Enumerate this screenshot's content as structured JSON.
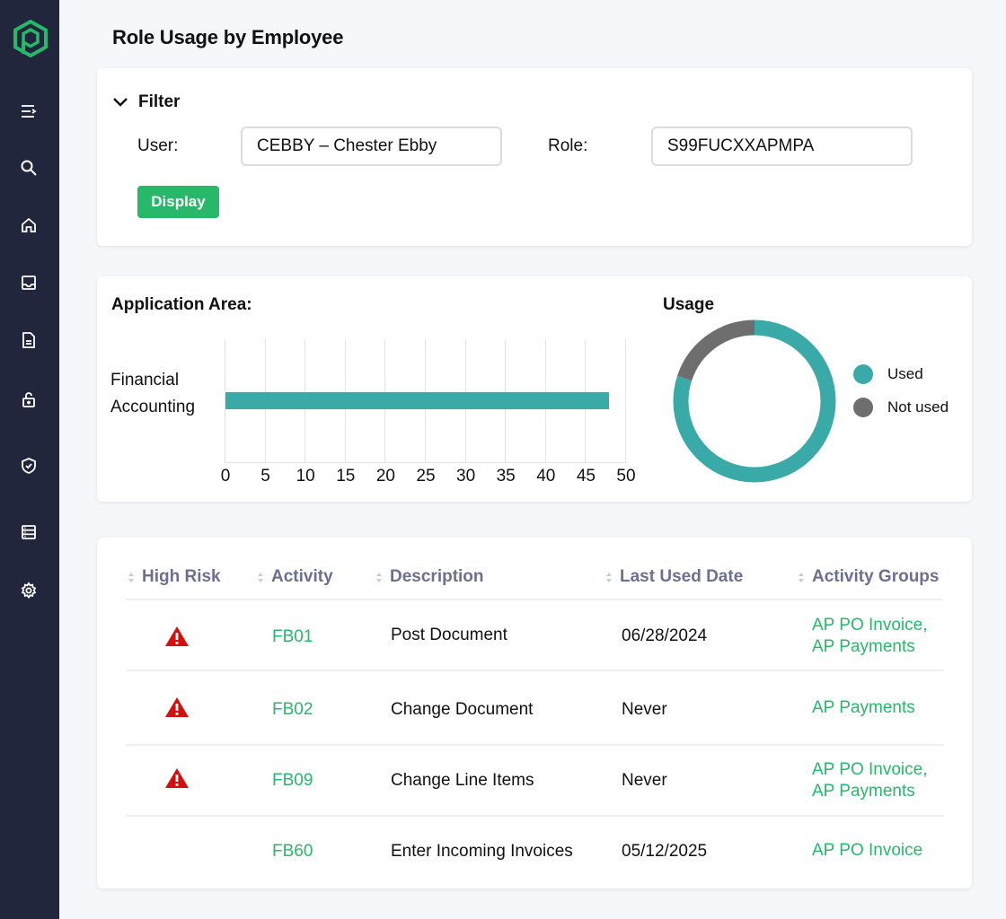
{
  "sidebar": {
    "logo": "brand-hexagon-logo",
    "brand_color": "#27b86a",
    "background": "#22263d",
    "items": [
      {
        "name": "menu",
        "icon": "menu-icon"
      },
      {
        "name": "search",
        "icon": "search-icon"
      },
      {
        "name": "home",
        "icon": "home-icon"
      },
      {
        "name": "inbox",
        "icon": "inbox-icon"
      },
      {
        "name": "document",
        "icon": "document-icon"
      },
      {
        "name": "unlock",
        "icon": "unlock-icon"
      },
      {
        "name": "shield",
        "icon": "shield-check-icon"
      },
      {
        "name": "list",
        "icon": "list-icon"
      },
      {
        "name": "settings",
        "icon": "gear-icon"
      }
    ]
  },
  "page": {
    "title": "Role Usage by Employee"
  },
  "filter": {
    "title": "Filter",
    "user_label": "User:",
    "user_value": "CEBBY – Chester Ebby",
    "role_label": "Role:",
    "role_value": "S99FUCXXAPMPA",
    "display_label": "Display"
  },
  "charts": {
    "application_area_title": "Application Area:",
    "usage_title": "Usage"
  },
  "chart_data": [
    {
      "type": "bar",
      "orientation": "horizontal",
      "title": "Application Area:",
      "categories": [
        "Financial Accounting"
      ],
      "values": [
        48
      ],
      "xlim": [
        0,
        50
      ],
      "xticks": [
        0,
        5,
        10,
        15,
        20,
        25,
        30,
        35,
        40,
        45,
        50
      ],
      "grid": true,
      "color": "#3aaaa9"
    },
    {
      "type": "pie",
      "variant": "donut",
      "title": "Usage",
      "labels": [
        "Used",
        "Not used"
      ],
      "values": [
        80,
        20
      ],
      "colors": [
        "#3aaaa9",
        "#6e6e6e"
      ],
      "legend_position": "right"
    }
  ],
  "table": {
    "headers": [
      "High Risk",
      "Activity",
      "Description",
      "Last Used Date",
      "Activity Groups"
    ],
    "rows": [
      {
        "high_risk": true,
        "activity": "FB01",
        "description": "Post Document",
        "last_used": "06/28/2024",
        "groups_line1": "AP PO Invoice,",
        "groups_line2": "AP Payments"
      },
      {
        "high_risk": true,
        "activity": "FB02",
        "description": "Change Document",
        "last_used": "Never",
        "groups_line1": "AP Payments",
        "groups_line2": ""
      },
      {
        "high_risk": true,
        "activity": "FB09",
        "description": "Change Line Items",
        "last_used": "Never",
        "groups_line1": "AP PO Invoice,",
        "groups_line2": "AP Payments"
      },
      {
        "high_risk": false,
        "activity": "FB60",
        "description": "Enter Incoming Invoices",
        "last_used": "05/12/2025",
        "groups_line1": "AP PO Invoice",
        "groups_line2": ""
      }
    ],
    "risk_color": "#d40f0f",
    "link_color": "#27b86a",
    "header_color": "#6b6f93"
  }
}
